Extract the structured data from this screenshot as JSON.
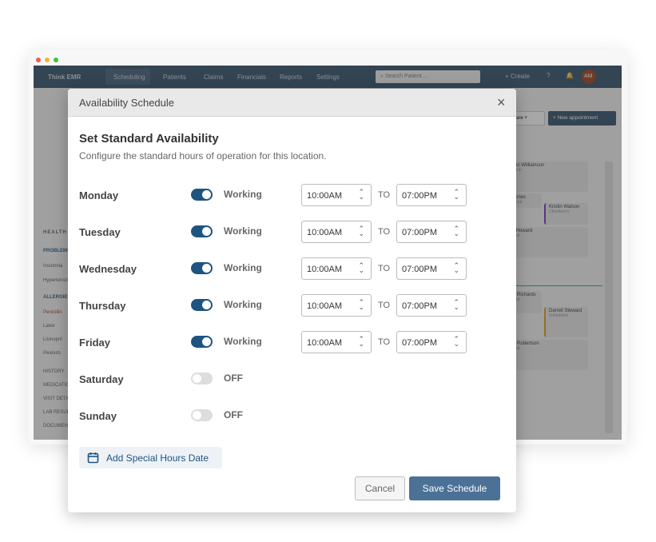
{
  "app": {
    "brand": "Think EMR",
    "nav": [
      "Scheduling",
      "Patients",
      "Claims",
      "Financials",
      "Reports",
      "Settings"
    ],
    "search_placeholder": "Search Patient ...",
    "create": "+ Create",
    "avatar": "AM",
    "care": "care",
    "new_appointment": "+ New appointment"
  },
  "sidebar": {
    "health": "HEALTH",
    "problems": "PROBLEMS",
    "problem_items": [
      "Insomnia",
      "Hypertension"
    ],
    "allergies": "ALLERGIES",
    "allergy_items": [
      "Penicillin",
      "Latex",
      "Lisinopril",
      "Peanuts"
    ],
    "sections": [
      "HISTORY",
      "MEDICATIONS",
      "VISIT DETAILS",
      "LAB RESULTS",
      "DOCUMENTS"
    ]
  },
  "appointments": [
    {
      "name": "ron Williamson",
      "status": "ed in"
    },
    {
      "name": "Jones",
      "status": "d out"
    },
    {
      "name": "Kristin Watson",
      "status": "Checked in"
    },
    {
      "name": "r Howard",
      "status": "ned"
    },
    {
      "name": "d Richards",
      "status": "ned"
    },
    {
      "name": "Darrell Steward",
      "status": "Scheduled"
    },
    {
      "name": "e Robertson",
      "status": "ned"
    }
  ],
  "modal": {
    "title": "Availability Schedule",
    "heading": "Set Standard Availability",
    "subtitle": "Configure the standard hours of operation for this location.",
    "to_label": "TO",
    "days": [
      {
        "day": "Monday",
        "on": true,
        "status": "Working",
        "start": "10:00AM",
        "end": "07:00PM"
      },
      {
        "day": "Tuesday",
        "on": true,
        "status": "Working",
        "start": "10:00AM",
        "end": "07:00PM"
      },
      {
        "day": "Wednesday",
        "on": true,
        "status": "Working",
        "start": "10:00AM",
        "end": "07:00PM"
      },
      {
        "day": "Thursday",
        "on": true,
        "status": "Working",
        "start": "10:00AM",
        "end": "07:00PM"
      },
      {
        "day": "Friday",
        "on": true,
        "status": "Working",
        "start": "10:00AM",
        "end": "07:00PM"
      },
      {
        "day": "Saturday",
        "on": false,
        "status": "OFF"
      },
      {
        "day": "Sunday",
        "on": false,
        "status": "OFF"
      }
    ],
    "add_special": "Add Special Hours Date",
    "cancel": "Cancel",
    "save": "Save Schedule"
  },
  "colors": {
    "accent": "#1e5482",
    "nav": "#2d4b67",
    "save": "#4b7196"
  }
}
